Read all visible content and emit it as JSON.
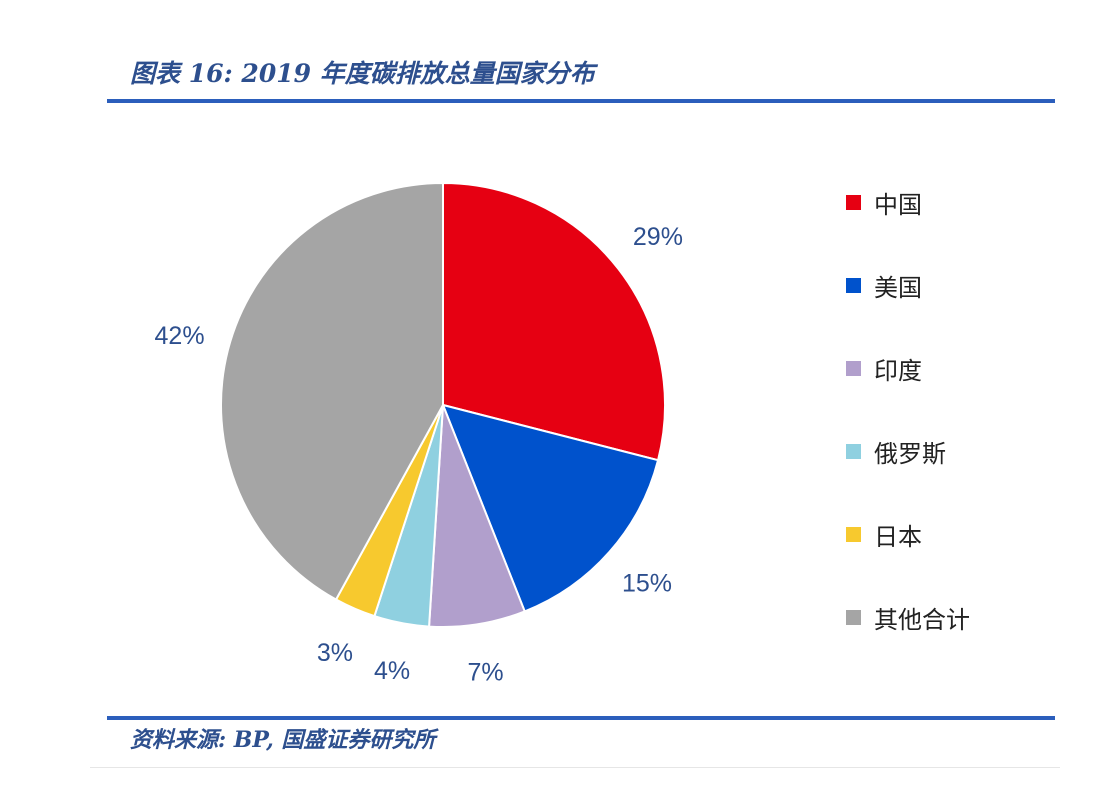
{
  "header": {
    "title": "图表 16:  2019 年度碳排放总量国家分布"
  },
  "footer": {
    "source": "资料来源: BP, 国盛证券研究所"
  },
  "chart_data": {
    "type": "pie",
    "title": "2019 年度碳排放总量国家分布",
    "categories": [
      "中国",
      "美国",
      "印度",
      "俄罗斯",
      "日本",
      "其他合计"
    ],
    "values": [
      29,
      15,
      7,
      4,
      3,
      42
    ],
    "labels": [
      "29%",
      "15%",
      "7%",
      "4%",
      "3%",
      "42%"
    ],
    "colors": [
      "#e60012",
      "#0052cc",
      "#b19fcc",
      "#8fd0e0",
      "#f7c92e",
      "#a5a5a5"
    ],
    "legend_position": "right",
    "start_angle": "12 o'clock",
    "direction": "clockwise"
  }
}
